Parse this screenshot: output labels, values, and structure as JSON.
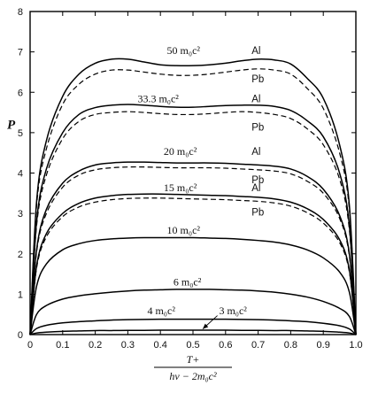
{
  "chart_data": {
    "type": "line",
    "title": "",
    "ylabel": "P",
    "xlabel_numerator": "T+",
    "xlabel_denominator": "hν − 2m₀c²",
    "xlim": [
      0,
      1.0
    ],
    "ylim": [
      0,
      8
    ],
    "xticks": [
      "0",
      "0.1",
      "0.2",
      "0.3",
      "0.4",
      "0.5",
      "0.6",
      "0.7",
      "0.8",
      "0.9",
      "1.0"
    ],
    "yticks": [
      "0",
      "1",
      "2",
      "3",
      "4",
      "5",
      "6",
      "7",
      "8"
    ],
    "grid": false,
    "series": [
      {
        "name": "50 m₀c² Al",
        "style": "solid",
        "x": [
          0,
          0.02,
          0.05,
          0.1,
          0.15,
          0.2,
          0.25,
          0.3,
          0.35,
          0.4,
          0.45,
          0.5,
          0.55,
          0.6,
          0.65,
          0.7,
          0.75,
          0.8,
          0.85,
          0.9,
          0.95,
          0.98,
          1.0
        ],
        "y": [
          0,
          3.3,
          4.8,
          5.9,
          6.45,
          6.72,
          6.82,
          6.82,
          6.75,
          6.68,
          6.66,
          6.66,
          6.68,
          6.72,
          6.78,
          6.82,
          6.8,
          6.7,
          6.35,
          5.85,
          4.7,
          3.2,
          0
        ]
      },
      {
        "name": "50 m₀c² Pb",
        "style": "dashed",
        "x": [
          0,
          0.02,
          0.05,
          0.1,
          0.15,
          0.2,
          0.25,
          0.3,
          0.35,
          0.4,
          0.45,
          0.5,
          0.55,
          0.6,
          0.65,
          0.7,
          0.75,
          0.8,
          0.85,
          0.9,
          0.95,
          0.98,
          1.0
        ],
        "y": [
          0,
          3.2,
          4.6,
          5.7,
          6.2,
          6.45,
          6.55,
          6.55,
          6.5,
          6.45,
          6.42,
          6.42,
          6.45,
          6.5,
          6.55,
          6.58,
          6.55,
          6.45,
          6.1,
          5.6,
          4.5,
          3.1,
          0
        ]
      },
      {
        "name": "33.3 m₀c² Al",
        "style": "solid",
        "x": [
          0,
          0.02,
          0.05,
          0.1,
          0.15,
          0.2,
          0.25,
          0.3,
          0.35,
          0.4,
          0.45,
          0.5,
          0.55,
          0.6,
          0.65,
          0.7,
          0.75,
          0.8,
          0.85,
          0.9,
          0.95,
          0.98,
          1.0
        ],
        "y": [
          0,
          2.8,
          4.1,
          5.0,
          5.45,
          5.62,
          5.68,
          5.7,
          5.68,
          5.65,
          5.63,
          5.63,
          5.65,
          5.67,
          5.68,
          5.68,
          5.65,
          5.55,
          5.3,
          4.9,
          4.0,
          2.7,
          0
        ]
      },
      {
        "name": "33.3 m₀c² Pb",
        "style": "dashed",
        "x": [
          0,
          0.02,
          0.05,
          0.1,
          0.15,
          0.2,
          0.25,
          0.3,
          0.35,
          0.4,
          0.45,
          0.5,
          0.55,
          0.6,
          0.65,
          0.7,
          0.75,
          0.8,
          0.85,
          0.9,
          0.95,
          0.98,
          1.0
        ],
        "y": [
          0,
          2.7,
          3.95,
          4.85,
          5.28,
          5.45,
          5.5,
          5.52,
          5.5,
          5.47,
          5.45,
          5.45,
          5.47,
          5.5,
          5.52,
          5.5,
          5.45,
          5.35,
          5.1,
          4.7,
          3.85,
          2.6,
          0
        ]
      },
      {
        "name": "20 m₀c² Al",
        "style": "solid",
        "x": [
          0,
          0.02,
          0.05,
          0.1,
          0.15,
          0.2,
          0.25,
          0.3,
          0.35,
          0.4,
          0.45,
          0.5,
          0.55,
          0.6,
          0.65,
          0.7,
          0.75,
          0.8,
          0.85,
          0.9,
          0.95,
          0.98,
          1.0
        ],
        "y": [
          0,
          2.1,
          3.1,
          3.75,
          4.05,
          4.2,
          4.25,
          4.27,
          4.27,
          4.26,
          4.25,
          4.25,
          4.25,
          4.24,
          4.22,
          4.2,
          4.17,
          4.1,
          3.92,
          3.6,
          2.95,
          2.0,
          0
        ]
      },
      {
        "name": "20 m₀c² Pb",
        "style": "dashed",
        "x": [
          0,
          0.02,
          0.05,
          0.1,
          0.15,
          0.2,
          0.25,
          0.3,
          0.35,
          0.4,
          0.45,
          0.5,
          0.55,
          0.6,
          0.65,
          0.7,
          0.75,
          0.8,
          0.85,
          0.9,
          0.95,
          0.98,
          1.0
        ],
        "y": [
          0,
          2.05,
          3.0,
          3.65,
          3.95,
          4.08,
          4.13,
          4.15,
          4.15,
          4.14,
          4.13,
          4.13,
          4.13,
          4.12,
          4.1,
          4.08,
          4.05,
          3.98,
          3.8,
          3.5,
          2.88,
          1.95,
          0
        ]
      },
      {
        "name": "15 m₀c² Al",
        "style": "solid",
        "x": [
          0,
          0.02,
          0.05,
          0.1,
          0.15,
          0.2,
          0.25,
          0.3,
          0.35,
          0.4,
          0.45,
          0.5,
          0.55,
          0.6,
          0.65,
          0.7,
          0.75,
          0.8,
          0.85,
          0.9,
          0.95,
          0.98,
          1.0
        ],
        "y": [
          0,
          1.7,
          2.5,
          3.0,
          3.25,
          3.38,
          3.44,
          3.47,
          3.48,
          3.48,
          3.47,
          3.46,
          3.45,
          3.44,
          3.42,
          3.4,
          3.36,
          3.28,
          3.12,
          2.85,
          2.35,
          1.6,
          0
        ]
      },
      {
        "name": "15 m₀c² Pb",
        "style": "dashed",
        "x": [
          0,
          0.02,
          0.05,
          0.1,
          0.15,
          0.2,
          0.25,
          0.3,
          0.35,
          0.4,
          0.45,
          0.5,
          0.55,
          0.6,
          0.65,
          0.7,
          0.75,
          0.8,
          0.85,
          0.9,
          0.95,
          0.98,
          1.0
        ],
        "y": [
          0,
          1.65,
          2.42,
          2.92,
          3.16,
          3.28,
          3.34,
          3.37,
          3.38,
          3.38,
          3.37,
          3.36,
          3.35,
          3.34,
          3.32,
          3.3,
          3.26,
          3.18,
          3.02,
          2.76,
          2.28,
          1.55,
          0
        ]
      },
      {
        "name": "10 m₀c²",
        "style": "solid",
        "x": [
          0,
          0.02,
          0.05,
          0.1,
          0.15,
          0.2,
          0.25,
          0.3,
          0.35,
          0.4,
          0.45,
          0.5,
          0.55,
          0.6,
          0.65,
          0.7,
          0.75,
          0.8,
          0.85,
          0.9,
          0.95,
          0.98,
          1.0
        ],
        "y": [
          0,
          1.2,
          1.75,
          2.1,
          2.25,
          2.33,
          2.37,
          2.39,
          2.4,
          2.4,
          2.4,
          2.4,
          2.39,
          2.38,
          2.36,
          2.33,
          2.29,
          2.22,
          2.1,
          1.9,
          1.55,
          1.05,
          0
        ]
      },
      {
        "name": "6 m₀c²",
        "style": "solid",
        "x": [
          0,
          0.02,
          0.05,
          0.1,
          0.15,
          0.2,
          0.25,
          0.3,
          0.35,
          0.4,
          0.45,
          0.5,
          0.55,
          0.6,
          0.65,
          0.7,
          0.75,
          0.8,
          0.85,
          0.9,
          0.95,
          0.98,
          1.0
        ],
        "y": [
          0,
          0.5,
          0.72,
          0.88,
          0.96,
          1.01,
          1.05,
          1.08,
          1.1,
          1.11,
          1.12,
          1.12,
          1.12,
          1.11,
          1.1,
          1.08,
          1.05,
          1.0,
          0.93,
          0.82,
          0.65,
          0.45,
          0
        ]
      },
      {
        "name": "4 m₀c²",
        "style": "solid",
        "x": [
          0,
          0.02,
          0.05,
          0.1,
          0.15,
          0.2,
          0.25,
          0.3,
          0.35,
          0.4,
          0.45,
          0.5,
          0.55,
          0.6,
          0.65,
          0.7,
          0.75,
          0.8,
          0.85,
          0.9,
          0.95,
          0.98,
          1.0
        ],
        "y": [
          0,
          0.15,
          0.23,
          0.29,
          0.32,
          0.34,
          0.36,
          0.37,
          0.375,
          0.38,
          0.38,
          0.38,
          0.38,
          0.38,
          0.375,
          0.37,
          0.36,
          0.34,
          0.32,
          0.28,
          0.22,
          0.14,
          0
        ]
      },
      {
        "name": "3 m₀c²",
        "style": "solid",
        "x": [
          0,
          0.02,
          0.05,
          0.1,
          0.15,
          0.2,
          0.25,
          0.3,
          0.35,
          0.4,
          0.45,
          0.5,
          0.55,
          0.6,
          0.65,
          0.7,
          0.75,
          0.8,
          0.85,
          0.9,
          0.95,
          0.98,
          1.0
        ],
        "y": [
          0,
          0.04,
          0.06,
          0.08,
          0.09,
          0.1,
          0.1,
          0.105,
          0.105,
          0.11,
          0.11,
          0.11,
          0.11,
          0.11,
          0.105,
          0.105,
          0.1,
          0.1,
          0.09,
          0.08,
          0.06,
          0.04,
          0
        ]
      }
    ],
    "annotations": [
      {
        "text": "50 m₀c²",
        "x": 0.42,
        "y": 6.95
      },
      {
        "text": "Al",
        "x": 0.68,
        "y": 6.95
      },
      {
        "text": "Pb",
        "x": 0.68,
        "y": 6.25
      },
      {
        "text": "33.3 m₀c²",
        "x": 0.33,
        "y": 5.75
      },
      {
        "text": "Al",
        "x": 0.68,
        "y": 5.75
      },
      {
        "text": "Pb",
        "x": 0.68,
        "y": 5.05
      },
      {
        "text": "20 m₀c²",
        "x": 0.41,
        "y": 4.45
      },
      {
        "text": "Al",
        "x": 0.68,
        "y": 4.45
      },
      {
        "text": "Pb",
        "x": 0.68,
        "y": 3.75
      },
      {
        "text": "15 m₀c²",
        "x": 0.41,
        "y": 3.55
      },
      {
        "text": "Al",
        "x": 0.68,
        "y": 3.55
      },
      {
        "text": "Pb",
        "x": 0.68,
        "y": 2.95
      },
      {
        "text": "10 m₀c²",
        "x": 0.42,
        "y": 2.5
      },
      {
        "text": "6 m₀c²",
        "x": 0.44,
        "y": 1.22
      },
      {
        "text": "4 m₀c²",
        "x": 0.36,
        "y": 0.5
      },
      {
        "text": "3 m₀c²",
        "x": 0.58,
        "y": 0.5
      }
    ]
  }
}
